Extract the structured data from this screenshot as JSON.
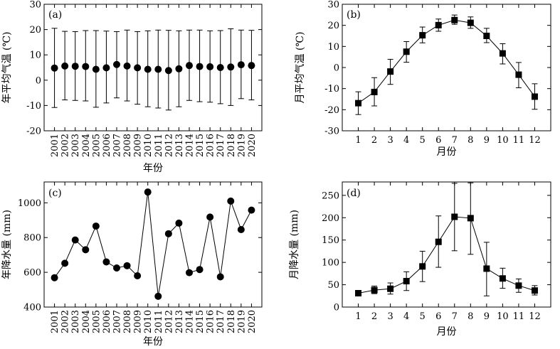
{
  "chart_data": [
    {
      "id": "a",
      "panel_label": "(a)",
      "type": "scatter",
      "markers": "circle",
      "connected": false,
      "error_bars": true,
      "xlabel": "年份",
      "ylabel": "年平均气温 (℃)",
      "x_tick_rotation": "vertical",
      "categories": [
        "2001",
        "2002",
        "2003",
        "2004",
        "2005",
        "2006",
        "2007",
        "2008",
        "2009",
        "2010",
        "2011",
        "2012",
        "2013",
        "2014",
        "2015",
        "2016",
        "2017",
        "2018",
        "2019",
        "2020"
      ],
      "values": [
        4.8,
        5.6,
        5.5,
        5.4,
        4.3,
        4.9,
        6.2,
        5.6,
        4.9,
        4.3,
        4.3,
        3.8,
        4.5,
        5.8,
        5.4,
        5.3,
        5.0,
        5.2,
        6.1,
        5.8
      ],
      "err_low": [
        -10.8,
        -7.8,
        -8.0,
        -8.2,
        -10.7,
        -9.0,
        -7.0,
        -8.2,
        -9.5,
        -10.5,
        -11.0,
        -11.8,
        -10.5,
        -8.0,
        -8.5,
        -8.7,
        -9.3,
        -10.0,
        -7.3,
        -7.8
      ],
      "err_high": [
        20.5,
        19.3,
        19.2,
        19.6,
        19.6,
        19.4,
        19.2,
        19.8,
        19.2,
        19.5,
        19.8,
        19.7,
        19.5,
        19.8,
        19.8,
        19.5,
        19.6,
        20.3,
        19.8,
        19.7
      ],
      "ylim": [
        -20,
        30
      ],
      "yticks": [
        -20,
        -10,
        0,
        10,
        20,
        30
      ]
    },
    {
      "id": "b",
      "panel_label": "(b)",
      "type": "line",
      "markers": "square",
      "connected": true,
      "error_bars": true,
      "xlabel": "月份",
      "ylabel": "月平均气温 (℃)",
      "categories": [
        "1",
        "2",
        "3",
        "4",
        "5",
        "6",
        "7",
        "8",
        "9",
        "10",
        "11",
        "12"
      ],
      "values": [
        -16.9,
        -11.6,
        -1.9,
        7.5,
        15.3,
        20.1,
        22.5,
        21.2,
        15.0,
        6.7,
        -3.4,
        -13.8
      ],
      "err_low": [
        -22.3,
        -18.2,
        -8.0,
        2.5,
        11.7,
        17.2,
        20.5,
        18.6,
        11.8,
        1.7,
        -9.6,
        -19.8
      ],
      "err_high": [
        -11.5,
        -4.8,
        3.9,
        12.3,
        19.2,
        23.0,
        24.9,
        24.0,
        18.6,
        11.3,
        2.4,
        -7.7
      ],
      "ylim": [
        -30,
        30
      ],
      "yticks": [
        -30,
        -20,
        -10,
        0,
        10,
        20,
        30
      ]
    },
    {
      "id": "c",
      "panel_label": "(c)",
      "type": "line",
      "markers": "circle",
      "connected": true,
      "error_bars": false,
      "xlabel": "年份",
      "ylabel": "年降水量 (mm)",
      "x_tick_rotation": "vertical",
      "categories": [
        "2001",
        "2002",
        "2003",
        "2004",
        "2005",
        "2006",
        "2007",
        "2008",
        "2009",
        "2010",
        "2011",
        "2012",
        "2013",
        "2014",
        "2015",
        "2016",
        "2017",
        "2018",
        "2019",
        "2020"
      ],
      "values": [
        569,
        652,
        786,
        730,
        866,
        660,
        625,
        638,
        580,
        1062,
        462,
        822,
        883,
        598,
        616,
        918,
        574,
        1010,
        846,
        958
      ],
      "ylim": [
        400,
        1120
      ],
      "yticks": [
        400,
        600,
        800,
        1000
      ]
    },
    {
      "id": "d",
      "panel_label": "(d)",
      "type": "line",
      "markers": "square",
      "connected": true,
      "error_bars": true,
      "xlabel": "月份",
      "ylabel": "月降水量 (mm)",
      "categories": [
        "1",
        "2",
        "3",
        "4",
        "5",
        "6",
        "7",
        "8",
        "9",
        "10",
        "11",
        "12"
      ],
      "values": [
        31,
        38,
        41,
        58,
        91,
        146,
        202,
        199,
        86,
        64,
        48,
        37
      ],
      "err_low": [
        27,
        30,
        29,
        37,
        57,
        89,
        126,
        118,
        25,
        42,
        33,
        27
      ],
      "err_high": [
        35,
        47,
        54,
        79,
        125,
        204,
        277,
        278,
        145,
        87,
        63,
        48
      ],
      "ylim": [
        0,
        280
      ],
      "yticks": [
        0,
        50,
        100,
        150,
        200,
        250
      ]
    }
  ]
}
